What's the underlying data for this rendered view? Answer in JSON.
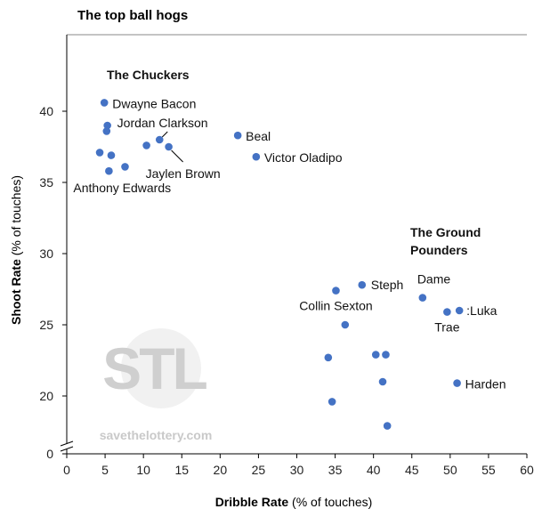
{
  "chart_data": {
    "type": "scatter",
    "title": "The top ball hogs",
    "xlabel_bold": "Dribble Rate",
    "xlabel_rest": " (% of touches)",
    "ylabel_bold": "Shoot Rate",
    "ylabel_rest": " (% of touches)",
    "xlim": [
      0,
      60
    ],
    "ylim_upper": [
      17,
      44
    ],
    "y_axis_break": true,
    "x_ticks": [
      0,
      5,
      10,
      15,
      20,
      25,
      30,
      35,
      40,
      45,
      50,
      55,
      60
    ],
    "y_ticks": [
      20,
      25,
      30,
      35,
      40
    ],
    "y_ticks_below_break": [
      0
    ],
    "grid": false,
    "color": "#4472c4",
    "group_labels": [
      "The Chuckers",
      "The Ground",
      "Pounders"
    ],
    "watermark": {
      "logo": "STL",
      "text": "savethelottery.com"
    },
    "points": [
      {
        "x": 4.9,
        "y": 40.6,
        "label": "Dwayne Bacon"
      },
      {
        "x": 5.3,
        "y": 39.0,
        "label": "Jordan Clarkson"
      },
      {
        "x": 5.2,
        "y": 38.6,
        "label": ""
      },
      {
        "x": 4.3,
        "y": 37.1,
        "label": ""
      },
      {
        "x": 5.8,
        "y": 36.9,
        "label": ""
      },
      {
        "x": 7.6,
        "y": 36.1,
        "label": ""
      },
      {
        "x": 5.5,
        "y": 35.8,
        "label": "Anthony Edwards"
      },
      {
        "x": 10.4,
        "y": 37.6,
        "label": ""
      },
      {
        "x": 12.1,
        "y": 38.0,
        "label": ""
      },
      {
        "x": 13.3,
        "y": 37.5,
        "label": "Jaylen Brown"
      },
      {
        "x": 22.3,
        "y": 38.3,
        "label": "Beal"
      },
      {
        "x": 24.7,
        "y": 36.8,
        "label": "Victor Oladipo"
      },
      {
        "x": 35.1,
        "y": 27.4,
        "label": "Collin Sexton"
      },
      {
        "x": 38.5,
        "y": 27.8,
        "label": "Steph"
      },
      {
        "x": 46.4,
        "y": 26.9,
        "label": "Dame"
      },
      {
        "x": 49.6,
        "y": 25.9,
        "label": "Trae"
      },
      {
        "x": 51.2,
        "y": 26.0,
        "label": ":Luka"
      },
      {
        "x": 36.3,
        "y": 25.0,
        "label": ""
      },
      {
        "x": 34.1,
        "y": 22.7,
        "label": ""
      },
      {
        "x": 40.3,
        "y": 22.9,
        "label": ""
      },
      {
        "x": 41.6,
        "y": 22.9,
        "label": ""
      },
      {
        "x": 41.2,
        "y": 21.0,
        "label": ""
      },
      {
        "x": 34.6,
        "y": 19.6,
        "label": ""
      },
      {
        "x": 50.9,
        "y": 20.9,
        "label": "Harden"
      },
      {
        "x": 41.8,
        "y": 17.9,
        "label": ""
      }
    ]
  }
}
